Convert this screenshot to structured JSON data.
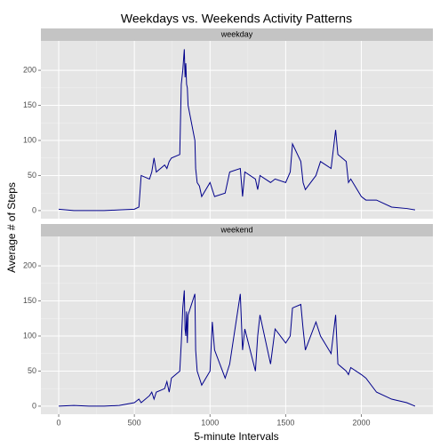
{
  "chart_data": {
    "type": "line",
    "facet": true,
    "title": "Weekdays vs. Weekends Activity Patterns",
    "x_label": "5-minute Intervals",
    "y_label": "Average # of Steps",
    "x": [
      0,
      100,
      200,
      300,
      400,
      500,
      530,
      545,
      600,
      615,
      630,
      645,
      700,
      715,
      730,
      745,
      800,
      810,
      820,
      830,
      835,
      840,
      845,
      850,
      855,
      900,
      905,
      915,
      930,
      945,
      1000,
      1015,
      1030,
      1100,
      1130,
      1200,
      1215,
      1230,
      1300,
      1315,
      1330,
      1400,
      1430,
      1500,
      1530,
      1545,
      1600,
      1615,
      1630,
      1700,
      1730,
      1800,
      1830,
      1845,
      1900,
      1915,
      1930,
      2000,
      2030,
      2100,
      2200,
      2300,
      2355
    ],
    "series": [
      {
        "name": "weekday",
        "color": "#00008b",
        "values": [
          2,
          0,
          0,
          0,
          1,
          2,
          5,
          50,
          45,
          55,
          75,
          55,
          65,
          60,
          70,
          75,
          80,
          180,
          200,
          230,
          190,
          210,
          180,
          175,
          150,
          100,
          60,
          40,
          35,
          20,
          40,
          30,
          20,
          25,
          55,
          60,
          20,
          55,
          45,
          30,
          50,
          40,
          45,
          40,
          55,
          95,
          70,
          40,
          30,
          50,
          70,
          60,
          115,
          80,
          70,
          40,
          45,
          20,
          15,
          15,
          5,
          3,
          1
        ]
      },
      {
        "name": "weekend",
        "color": "#00008b",
        "values": [
          0,
          1,
          0,
          0,
          1,
          5,
          10,
          5,
          15,
          20,
          10,
          20,
          25,
          35,
          20,
          40,
          50,
          90,
          140,
          165,
          110,
          100,
          135,
          90,
          130,
          160,
          80,
          50,
          40,
          30,
          50,
          120,
          80,
          40,
          60,
          160,
          80,
          110,
          50,
          100,
          130,
          60,
          110,
          90,
          100,
          140,
          145,
          110,
          80,
          120,
          100,
          75,
          130,
          60,
          50,
          45,
          55,
          45,
          40,
          20,
          10,
          5,
          0
        ]
      }
    ],
    "xlim": [
      -117.75,
      2472.75
    ],
    "xticks": [
      0,
      500,
      1000,
      1500,
      2000
    ],
    "ylim": [
      -11.5,
      241.9
    ],
    "yticks": [
      0,
      50,
      100,
      150,
      200
    ],
    "grid": true
  }
}
